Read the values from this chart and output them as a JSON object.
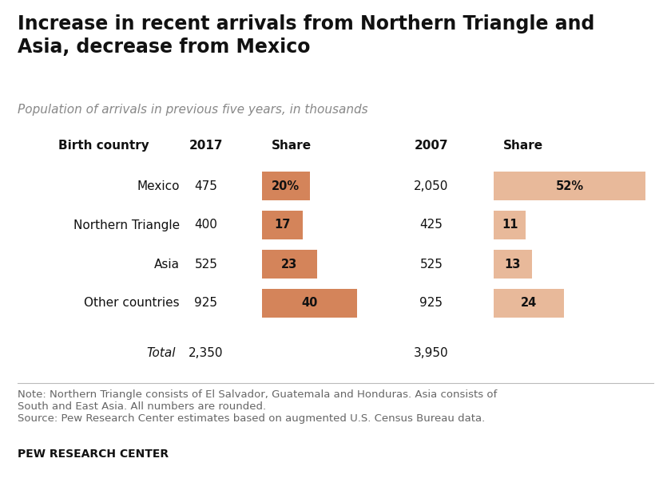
{
  "title": "Increase in recent arrivals from Northern Triangle and\nAsia, decrease from Mexico",
  "subtitle": "Population of arrivals in previous five years, in thousands",
  "rows": [
    {
      "label": "Mexico",
      "val2017": "475",
      "share2017": 20,
      "pct2017": "20%",
      "val2007": "2,050",
      "share2007": 52,
      "pct2007": "52%"
    },
    {
      "label": "Northern Triangle",
      "val2017": "400",
      "share2017": 17,
      "pct2017": "17",
      "val2007": "425",
      "share2007": 11,
      "pct2007": "11"
    },
    {
      "label": "Asia",
      "val2017": "525",
      "share2017": 23,
      "pct2017": "23",
      "val2007": "525",
      "share2007": 13,
      "pct2007": "13"
    },
    {
      "label": "Other countries",
      "val2017": "925",
      "share2017": 40,
      "pct2017": "40",
      "val2007": "925",
      "share2007": 24,
      "pct2007": "24"
    }
  ],
  "total2017": "2,350",
  "total2007": "3,950",
  "note_line1": "Note: Northern Triangle consists of El Salvador, Guatemala and Honduras. Asia consists of",
  "note_line2": "South and East Asia. All numbers are rounded.",
  "note_line3": "Source: Pew Research Center estimates based on augmented U.S. Census Bureau data.",
  "footer": "PEW RESEARCH CENTER",
  "color_2017": "#d4845a",
  "color_2007": "#e8b99a",
  "bg_color": "#ffffff"
}
